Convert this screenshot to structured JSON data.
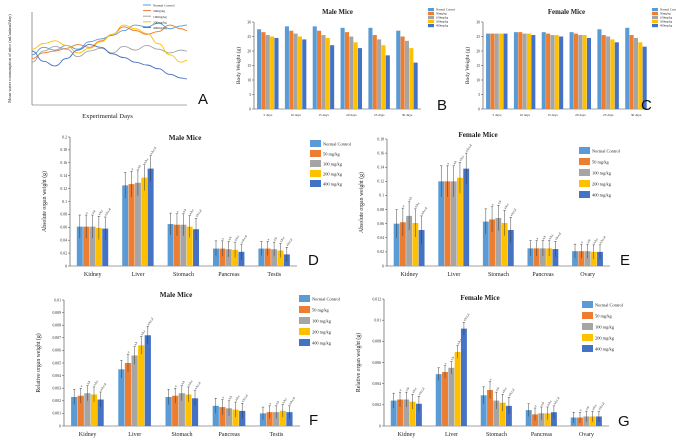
{
  "figure": {
    "panel_labels": [
      "A",
      "B",
      "C",
      "D",
      "E",
      "F",
      "G"
    ]
  },
  "legend_entries": [
    "Normal Control",
    "50 mg/kg",
    "100 mg/kg",
    "200 mg/kg",
    "400 mg/kg"
  ],
  "colors": [
    "#5b9bd5",
    "#ed7d31",
    "#a5a5a5",
    "#ffc000",
    "#4472c4"
  ],
  "chart_data": [
    {
      "panel": "A",
      "type": "line",
      "title": "",
      "xlabel": "Experimental Days",
      "ylabel": "Mean water consumption of mice (ml/animal/day)",
      "ylim": [
        0,
        10
      ],
      "xlim": [
        1,
        28
      ],
      "x": [
        1,
        3,
        5,
        7,
        9,
        11,
        13,
        15,
        17,
        19,
        21,
        23,
        25,
        27,
        28
      ],
      "legend": [
        "Normal Control",
        "50mg/kg",
        "100mg/kg",
        "200mg/kg",
        "400mg/kg"
      ],
      "series": [
        {
          "name": "Normal Control",
          "values": [
            5.4,
            6.2,
            5.9,
            6.4,
            6.0,
            6.8,
            7.1,
            7.5,
            8.0,
            8.6,
            8.4,
            8.8,
            8.2,
            8.5,
            8.6
          ]
        },
        {
          "name": "50mg/kg",
          "values": [
            5.0,
            5.6,
            5.8,
            6.1,
            6.5,
            6.2,
            6.9,
            7.6,
            8.4,
            8.0,
            7.6,
            7.9,
            8.6,
            8.2,
            8.0
          ]
        },
        {
          "name": "100mg/kg",
          "values": [
            4.6,
            5.8,
            6.3,
            6.0,
            5.2,
            5.8,
            6.1,
            5.6,
            6.3,
            5.9,
            6.4,
            6.0,
            5.6,
            5.9,
            5.8
          ]
        },
        {
          "name": "200mg/kg",
          "values": [
            6.0,
            6.6,
            6.9,
            6.4,
            5.6,
            6.1,
            6.8,
            7.6,
            8.6,
            8.2,
            7.7,
            6.6,
            5.4,
            4.6,
            4.8
          ]
        },
        {
          "name": "400mg/kg",
          "values": [
            5.8,
            4.7,
            4.2,
            5.0,
            5.9,
            6.5,
            6.2,
            5.5,
            5.1,
            4.6,
            4.3,
            3.9,
            3.3,
            2.9,
            2.8
          ]
        }
      ]
    },
    {
      "panel": "B",
      "type": "bar",
      "title": "Male Mice",
      "ylabel": "Body Weight (g)",
      "ylim": [
        0,
        30
      ],
      "yticks": [
        0,
        5,
        10,
        15,
        20,
        25,
        30
      ],
      "categories": [
        "5 days",
        "10 days",
        "15 days",
        "20 days",
        "25 days",
        "30 days"
      ],
      "legend": [
        "Normal Control",
        "50mg/kg",
        "100mg/kg",
        "200mg/kg",
        "400mg/kg"
      ],
      "series": [
        {
          "name": "Normal Control",
          "values": [
            27.5,
            28.5,
            28.5,
            28,
            28,
            27
          ]
        },
        {
          "name": "50mg/kg",
          "values": [
            26.5,
            27,
            27,
            26.5,
            25.5,
            25
          ]
        },
        {
          "name": "100mg/kg",
          "values": [
            25.5,
            26,
            25.5,
            25,
            24,
            23.5
          ]
        },
        {
          "name": "200mg/kg",
          "values": [
            25,
            25,
            24.5,
            23,
            22,
            21
          ]
        },
        {
          "name": "400mg/kg",
          "values": [
            24.5,
            24,
            22,
            21,
            18.5,
            16
          ]
        }
      ]
    },
    {
      "panel": "C",
      "type": "bar",
      "title": "Female Mice",
      "ylabel": "Body Weight (g)",
      "ylim": [
        0,
        30
      ],
      "yticks": [
        0,
        5,
        10,
        15,
        20,
        25,
        30
      ],
      "categories": [
        "5 days",
        "10 days",
        "15 days",
        "20 days",
        "25 days",
        "30 days"
      ],
      "legend": [
        "Normal Control",
        "50mg/kg",
        "100mg/kg",
        "200mg/kg",
        "400mg/kg"
      ],
      "series": [
        {
          "name": "Normal Control",
          "values": [
            26,
            26.5,
            26.5,
            26.5,
            27.5,
            28
          ]
        },
        {
          "name": "50mg/kg",
          "values": [
            26,
            26.5,
            26,
            26,
            25.5,
            25.5
          ]
        },
        {
          "name": "100mg/kg",
          "values": [
            26,
            26,
            25.5,
            25.5,
            25,
            24.5
          ]
        },
        {
          "name": "200mg/kg",
          "values": [
            26,
            26,
            25.5,
            25.5,
            24,
            23
          ]
        },
        {
          "name": "400mg/kg",
          "values": [
            26,
            25.5,
            25,
            24.5,
            23,
            21.5
          ]
        }
      ]
    },
    {
      "panel": "D",
      "type": "bar",
      "title": "Male Mice",
      "ylabel": "Absolute organ weight (g)",
      "ylim": [
        0,
        0.2
      ],
      "yticks": [
        0,
        0.02,
        0.04,
        0.06,
        0.08,
        0.1,
        0.12,
        0.14,
        0.16,
        0.18,
        0.2
      ],
      "ytick_labels": [
        "0",
        "0.02",
        "0.04",
        "0.06",
        "0.08",
        "0.1",
        "0.12",
        "0.14",
        "0.16",
        "0.18",
        "0.2"
      ],
      "categories": [
        "Kidney",
        "Liver",
        "Stomach",
        "Pancreas",
        "Testis"
      ],
      "legend": [
        "Normal Control",
        "50 mg/kg",
        "100 mg/kg",
        "200 mg/kg",
        "400 mg/kg"
      ],
      "series": [
        {
          "name": "Normal Control",
          "values": [
            0.061,
            0.125,
            0.065,
            0.027,
            0.027
          ]
        },
        {
          "name": "50 mg/kg",
          "values": [
            0.061,
            0.127,
            0.064,
            0.027,
            0.027
          ]
        },
        {
          "name": "100 mg/kg",
          "values": [
            0.061,
            0.129,
            0.064,
            0.026,
            0.026
          ]
        },
        {
          "name": "200 mg/kg",
          "values": [
            0.059,
            0.137,
            0.061,
            0.025,
            0.024
          ]
        },
        {
          "name": "400 mg/kg",
          "values": [
            0.058,
            0.151,
            0.057,
            0.022,
            0.018
          ]
        }
      ],
      "errors": [
        [
          0.018,
          0.02,
          0.017,
          0.012,
          0.011
        ],
        [
          0.018,
          0.02,
          0.017,
          0.012,
          0.011
        ],
        [
          0.018,
          0.02,
          0.017,
          0.012,
          0.011
        ],
        [
          0.018,
          0.02,
          0.017,
          0.012,
          0.011
        ],
        [
          0.018,
          0.02,
          0.017,
          0.012,
          0.011
        ]
      ],
      "annotations": [
        "a",
        "a,b",
        "a,b,c",
        "a,b,c,d"
      ]
    },
    {
      "panel": "E",
      "type": "bar",
      "title": "Female Mice",
      "ylabel": "Absolute organ weight (g)",
      "ylim": [
        0,
        0.18
      ],
      "yticks": [
        0,
        0.02,
        0.04,
        0.06,
        0.08,
        0.1,
        0.12,
        0.14,
        0.16,
        0.18
      ],
      "ytick_labels": [
        "0",
        "0.02",
        "0.04",
        "0.06",
        "0.08",
        "0.1",
        "0.12",
        "0.14",
        "0.16",
        "0.18"
      ],
      "categories": [
        "Kidney",
        "Liver",
        "Stomach",
        "Pancreas",
        "Ovary"
      ],
      "legend": [
        "Normal Control",
        "50 mg/kg",
        "100 mg/kg",
        "200 mg/kg",
        "400 mg/kg"
      ],
      "series": [
        {
          "name": "Normal Control",
          "values": [
            0.06,
            0.12,
            0.063,
            0.025,
            0.021
          ]
        },
        {
          "name": "50 mg/kg",
          "values": [
            0.062,
            0.12,
            0.066,
            0.025,
            0.021
          ]
        },
        {
          "name": "100 mg/kg",
          "values": [
            0.071,
            0.12,
            0.068,
            0.025,
            0.021
          ]
        },
        {
          "name": "200 mg/kg",
          "values": [
            0.061,
            0.125,
            0.061,
            0.025,
            0.02
          ]
        },
        {
          "name": "400 mg/kg",
          "values": [
            0.051,
            0.138,
            0.051,
            0.024,
            0.02
          ]
        }
      ],
      "errors": [
        [
          0.02,
          0.022,
          0.018,
          0.011,
          0.01
        ],
        [
          0.02,
          0.022,
          0.018,
          0.011,
          0.01
        ],
        [
          0.02,
          0.022,
          0.018,
          0.011,
          0.01
        ],
        [
          0.02,
          0.022,
          0.018,
          0.011,
          0.01
        ],
        [
          0.02,
          0.022,
          0.018,
          0.011,
          0.01
        ]
      ],
      "annotations": [
        "a",
        "a,b",
        "a,b,c",
        "a,b,c,d"
      ]
    },
    {
      "panel": "F",
      "type": "bar",
      "title": "Male Mice",
      "ylabel": "Relative organ weight (g)",
      "ylim": [
        0,
        0.01
      ],
      "yticks": [
        0,
        0.001,
        0.002,
        0.003,
        0.004,
        0.005,
        0.006,
        0.007,
        0.008,
        0.009,
        0.01
      ],
      "ytick_labels": [
        "0",
        "0.001",
        "0.002",
        "0.003",
        "0.004",
        "0.005",
        "0.006",
        "0.007",
        "0.008",
        "0.009",
        "0.01"
      ],
      "categories": [
        "Kidney",
        "Liver",
        "Stomach",
        "Pancreas",
        "Testis"
      ],
      "legend": [
        "Normal Control",
        "50 mg/kg",
        "100 mg/kg",
        "200 mg/kg",
        "400 mg/kg"
      ],
      "series": [
        {
          "name": "Normal Control",
          "values": [
            0.0023,
            0.0045,
            0.0023,
            0.0016,
            0.001
          ]
        },
        {
          "name": "50 mg/kg",
          "values": [
            0.0024,
            0.005,
            0.0024,
            0.0015,
            0.0011
          ]
        },
        {
          "name": "100 mg/kg",
          "values": [
            0.0026,
            0.0056,
            0.0026,
            0.0014,
            0.0011
          ]
        },
        {
          "name": "200 mg/kg",
          "values": [
            0.0025,
            0.0064,
            0.0025,
            0.0013,
            0.0012
          ]
        },
        {
          "name": "400 mg/kg",
          "values": [
            0.0021,
            0.0072,
            0.0022,
            0.0012,
            0.0011
          ]
        }
      ],
      "errors": [
        [
          0.0006,
          0.0007,
          0.0006,
          0.0006,
          0.0005
        ],
        [
          0.0006,
          0.0007,
          0.0006,
          0.0006,
          0.0005
        ],
        [
          0.0006,
          0.0007,
          0.0006,
          0.0006,
          0.0005
        ],
        [
          0.0006,
          0.0007,
          0.0006,
          0.0006,
          0.0005
        ],
        [
          0.0006,
          0.0007,
          0.0006,
          0.0006,
          0.0005
        ]
      ],
      "annotations": [
        "a",
        "a,b",
        "a,b,c",
        "a,b,c,d"
      ]
    },
    {
      "panel": "G",
      "type": "bar",
      "title": "Female Mice",
      "ylabel": "Relative organ weight (g)",
      "ylim": [
        0,
        0.012
      ],
      "yticks": [
        0,
        0.002,
        0.004,
        0.006,
        0.008,
        0.01,
        0.012
      ],
      "ytick_labels": [
        "0",
        "0.002",
        "0.004",
        "0.006",
        "0.008",
        "0.01",
        "0.012"
      ],
      "categories": [
        "Kidney",
        "Liver",
        "Stomach",
        "Pancreas",
        "Ovary"
      ],
      "legend": [
        "Normal Control",
        "50 mg/kg",
        "100 mg/kg",
        "200 mg/kg",
        "400 mg/kg"
      ],
      "series": [
        {
          "name": "Normal Control",
          "values": [
            0.0024,
            0.0049,
            0.0029,
            0.0015,
            0.0008
          ]
        },
        {
          "name": "50 mg/kg",
          "values": [
            0.0025,
            0.0051,
            0.0034,
            0.0011,
            0.0008
          ]
        },
        {
          "name": "100 mg/kg",
          "values": [
            0.0025,
            0.0055,
            0.0024,
            0.0012,
            0.0009
          ]
        },
        {
          "name": "200 mg/kg",
          "values": [
            0.0023,
            0.007,
            0.0022,
            0.0012,
            0.0009
          ]
        },
        {
          "name": "400 mg/kg",
          "values": [
            0.0021,
            0.0092,
            0.0019,
            0.0013,
            0.0009
          ]
        }
      ],
      "errors": [
        [
          0.0007,
          0.0006,
          0.0008,
          0.0006,
          0.0005
        ],
        [
          0.0007,
          0.0006,
          0.0008,
          0.0006,
          0.0005
        ],
        [
          0.0007,
          0.0006,
          0.0008,
          0.0006,
          0.0005
        ],
        [
          0.0007,
          0.0006,
          0.0008,
          0.0006,
          0.0005
        ],
        [
          0.0007,
          0.0006,
          0.0008,
          0.0006,
          0.0005
        ]
      ],
      "annotations": [
        "a",
        "a,b",
        "a,b,c",
        "a,b,c,d"
      ]
    }
  ]
}
